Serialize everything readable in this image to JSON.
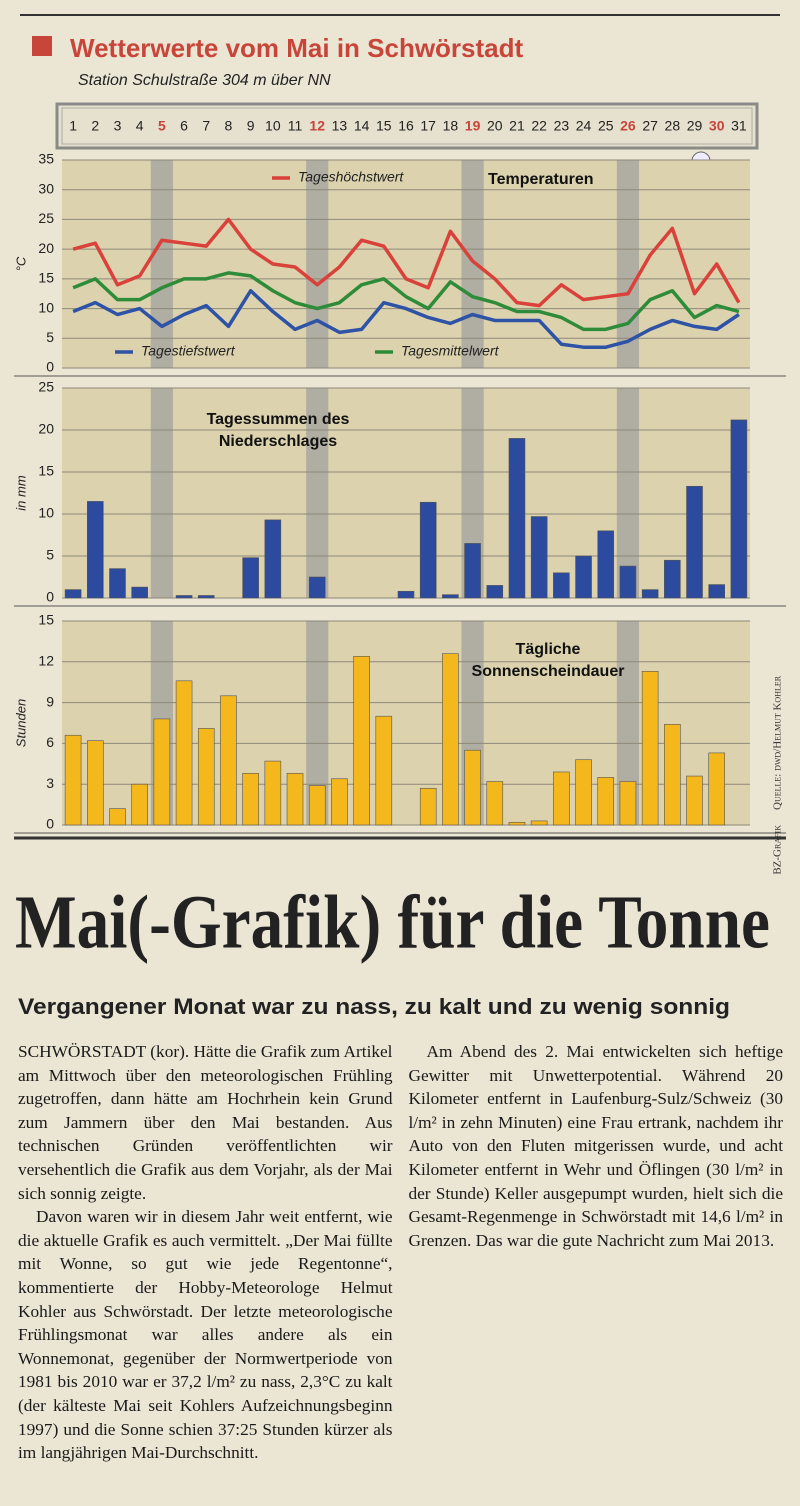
{
  "header": {
    "title": "Wetterwerte vom Mai in Schwörstadt",
    "subtitle": "Station Schulstraße 304 m über NN"
  },
  "days": [
    1,
    2,
    3,
    4,
    5,
    6,
    7,
    8,
    9,
    10,
    11,
    12,
    13,
    14,
    15,
    16,
    17,
    18,
    19,
    20,
    21,
    22,
    23,
    24,
    25,
    26,
    27,
    28,
    29,
    30,
    31
  ],
  "highlighted_days": [
    5,
    12,
    19,
    26,
    30
  ],
  "shaded_days": [
    5,
    12,
    19,
    26
  ],
  "credits": {
    "grafik": "BZ-Grafik",
    "source": "Quelle: dwd/Helmut Kohler"
  },
  "chart_data": [
    {
      "type": "line",
      "title": "Temperaturen",
      "y_label": "°C",
      "ylim": [
        0,
        35
      ],
      "yticks": [
        0,
        5,
        10,
        15,
        20,
        25,
        30,
        35
      ],
      "grid": true,
      "series": [
        {
          "name": "Tageshöchstwert",
          "color": "#d9413a",
          "values": [
            20,
            21,
            14,
            15.5,
            21.5,
            21,
            20.5,
            25,
            20,
            17.5,
            17,
            14,
            17,
            21.5,
            20.5,
            15,
            13.5,
            23,
            18,
            15,
            11,
            10.5,
            14,
            11.5,
            12,
            12.5,
            19,
            23.5,
            12.5,
            17.5,
            11
          ]
        },
        {
          "name": "Tagestiefstwert",
          "color": "#2d52a6",
          "values": [
            9.5,
            11,
            9,
            10,
            7,
            9,
            10.5,
            7,
            13,
            9.5,
            6.5,
            8,
            6,
            6.5,
            11,
            10,
            8.5,
            7.5,
            9,
            8,
            8,
            8,
            4,
            3.5,
            3.5,
            4.5,
            6.5,
            8,
            7,
            6.5,
            9
          ]
        },
        {
          "name": "Tagesmittelwert",
          "color": "#2e8b3a",
          "values": [
            13.5,
            15,
            11.5,
            11.5,
            13.5,
            15,
            15,
            16,
            15.5,
            13,
            11,
            10,
            11,
            14,
            15,
            12,
            10,
            14.5,
            12,
            11,
            9.5,
            9.5,
            8.5,
            6.5,
            6.5,
            7.5,
            11.5,
            13,
            8.5,
            10.5,
            9.5
          ]
        }
      ]
    },
    {
      "type": "bar",
      "title_lines": [
        "Tagessummen des",
        "Niederschlages"
      ],
      "y_label": "in mm",
      "ylim": [
        0,
        25
      ],
      "yticks": [
        0,
        5,
        10,
        15,
        20,
        25
      ],
      "grid": true,
      "color": "#2c4a9e",
      "values": [
        1,
        11.5,
        3.5,
        1.3,
        0,
        0.3,
        0.3,
        0,
        4.8,
        9.3,
        0,
        2.5,
        0,
        0,
        0,
        0.8,
        11.4,
        0.4,
        6.5,
        1.5,
        19,
        9.7,
        3,
        5,
        8,
        3.8,
        1,
        4.5,
        13.3,
        1.6,
        21.2
      ]
    },
    {
      "type": "bar",
      "title_lines": [
        "Tägliche",
        "Sonnenscheindauer"
      ],
      "y_label": "Stunden",
      "ylim": [
        0,
        15
      ],
      "yticks": [
        0,
        3,
        6,
        9,
        12,
        15
      ],
      "grid": true,
      "color": "#f4b81c",
      "values": [
        6.6,
        6.2,
        1.2,
        3,
        7.8,
        10.6,
        7.1,
        9.5,
        3.8,
        4.7,
        3.8,
        2.9,
        3.4,
        12.4,
        8,
        0,
        2.7,
        12.6,
        5.5,
        3.2,
        0.2,
        0.3,
        3.9,
        4.8,
        3.5,
        3.2,
        11.3,
        7.4,
        3.6,
        5.3,
        0
      ]
    }
  ],
  "article": {
    "headline": "Mai(-Grafik) für die Tonne",
    "subhead": "Vergangener Monat war zu nass, zu kalt und zu wenig sonnig",
    "paragraphs": [
      "SCHWÖRSTADT (kor). Hätte die Grafik zum Artikel am Mittwoch über den meteorologischen Frühling zugetroffen, dann hätte am Hochrhein kein Grund zum Jammern über den Mai bestanden. Aus technischen Gründen veröffentlichten wir versehentlich die Grafik aus dem Vorjahr, als der Mai sich sonnig zeigte.",
      "Davon waren wir in diesem Jahr weit entfernt, wie die aktuelle Grafik es auch vermittelt. „Der Mai füllte mit Wonne, so gut wie jede Regentonne“, kommentierte der Hobby-Meteorologe Helmut Kohler aus Schwörstadt. Der letzte meteorologische Frühlingsmonat war alles andere als ein Wonnemonat, gegenüber der Normwertperiode von 1981 bis 2010 war er 37,2 l/m² zu nass, 2,3°C zu kalt (der kälteste Mai seit Kohlers Aufzeichnungsbeginn 1997) und die Sonne schien 37:25 Stunden kürzer als im langjährigen Mai-Durchschnitt.",
      "Am Abend des 2. Mai entwickelten sich heftige Gewitter mit Unwetterpotential. Während 20 Kilometer entfernt in Laufenburg-Sulz/Schweiz (30 l/m² in zehn Minuten) eine Frau ertrank, nachdem ihr Auto von den Fluten mitgerissen wurde, und acht Kilometer entfernt in Wehr und Öflingen (30 l/m² in der Stunde) Keller ausgepumpt wurden, hielt sich die Gesamt-Regenmenge in Schwörstadt mit 14,6 l/m² in Grenzen. Das war die gute Nachricht zum Mai 2013."
    ]
  }
}
